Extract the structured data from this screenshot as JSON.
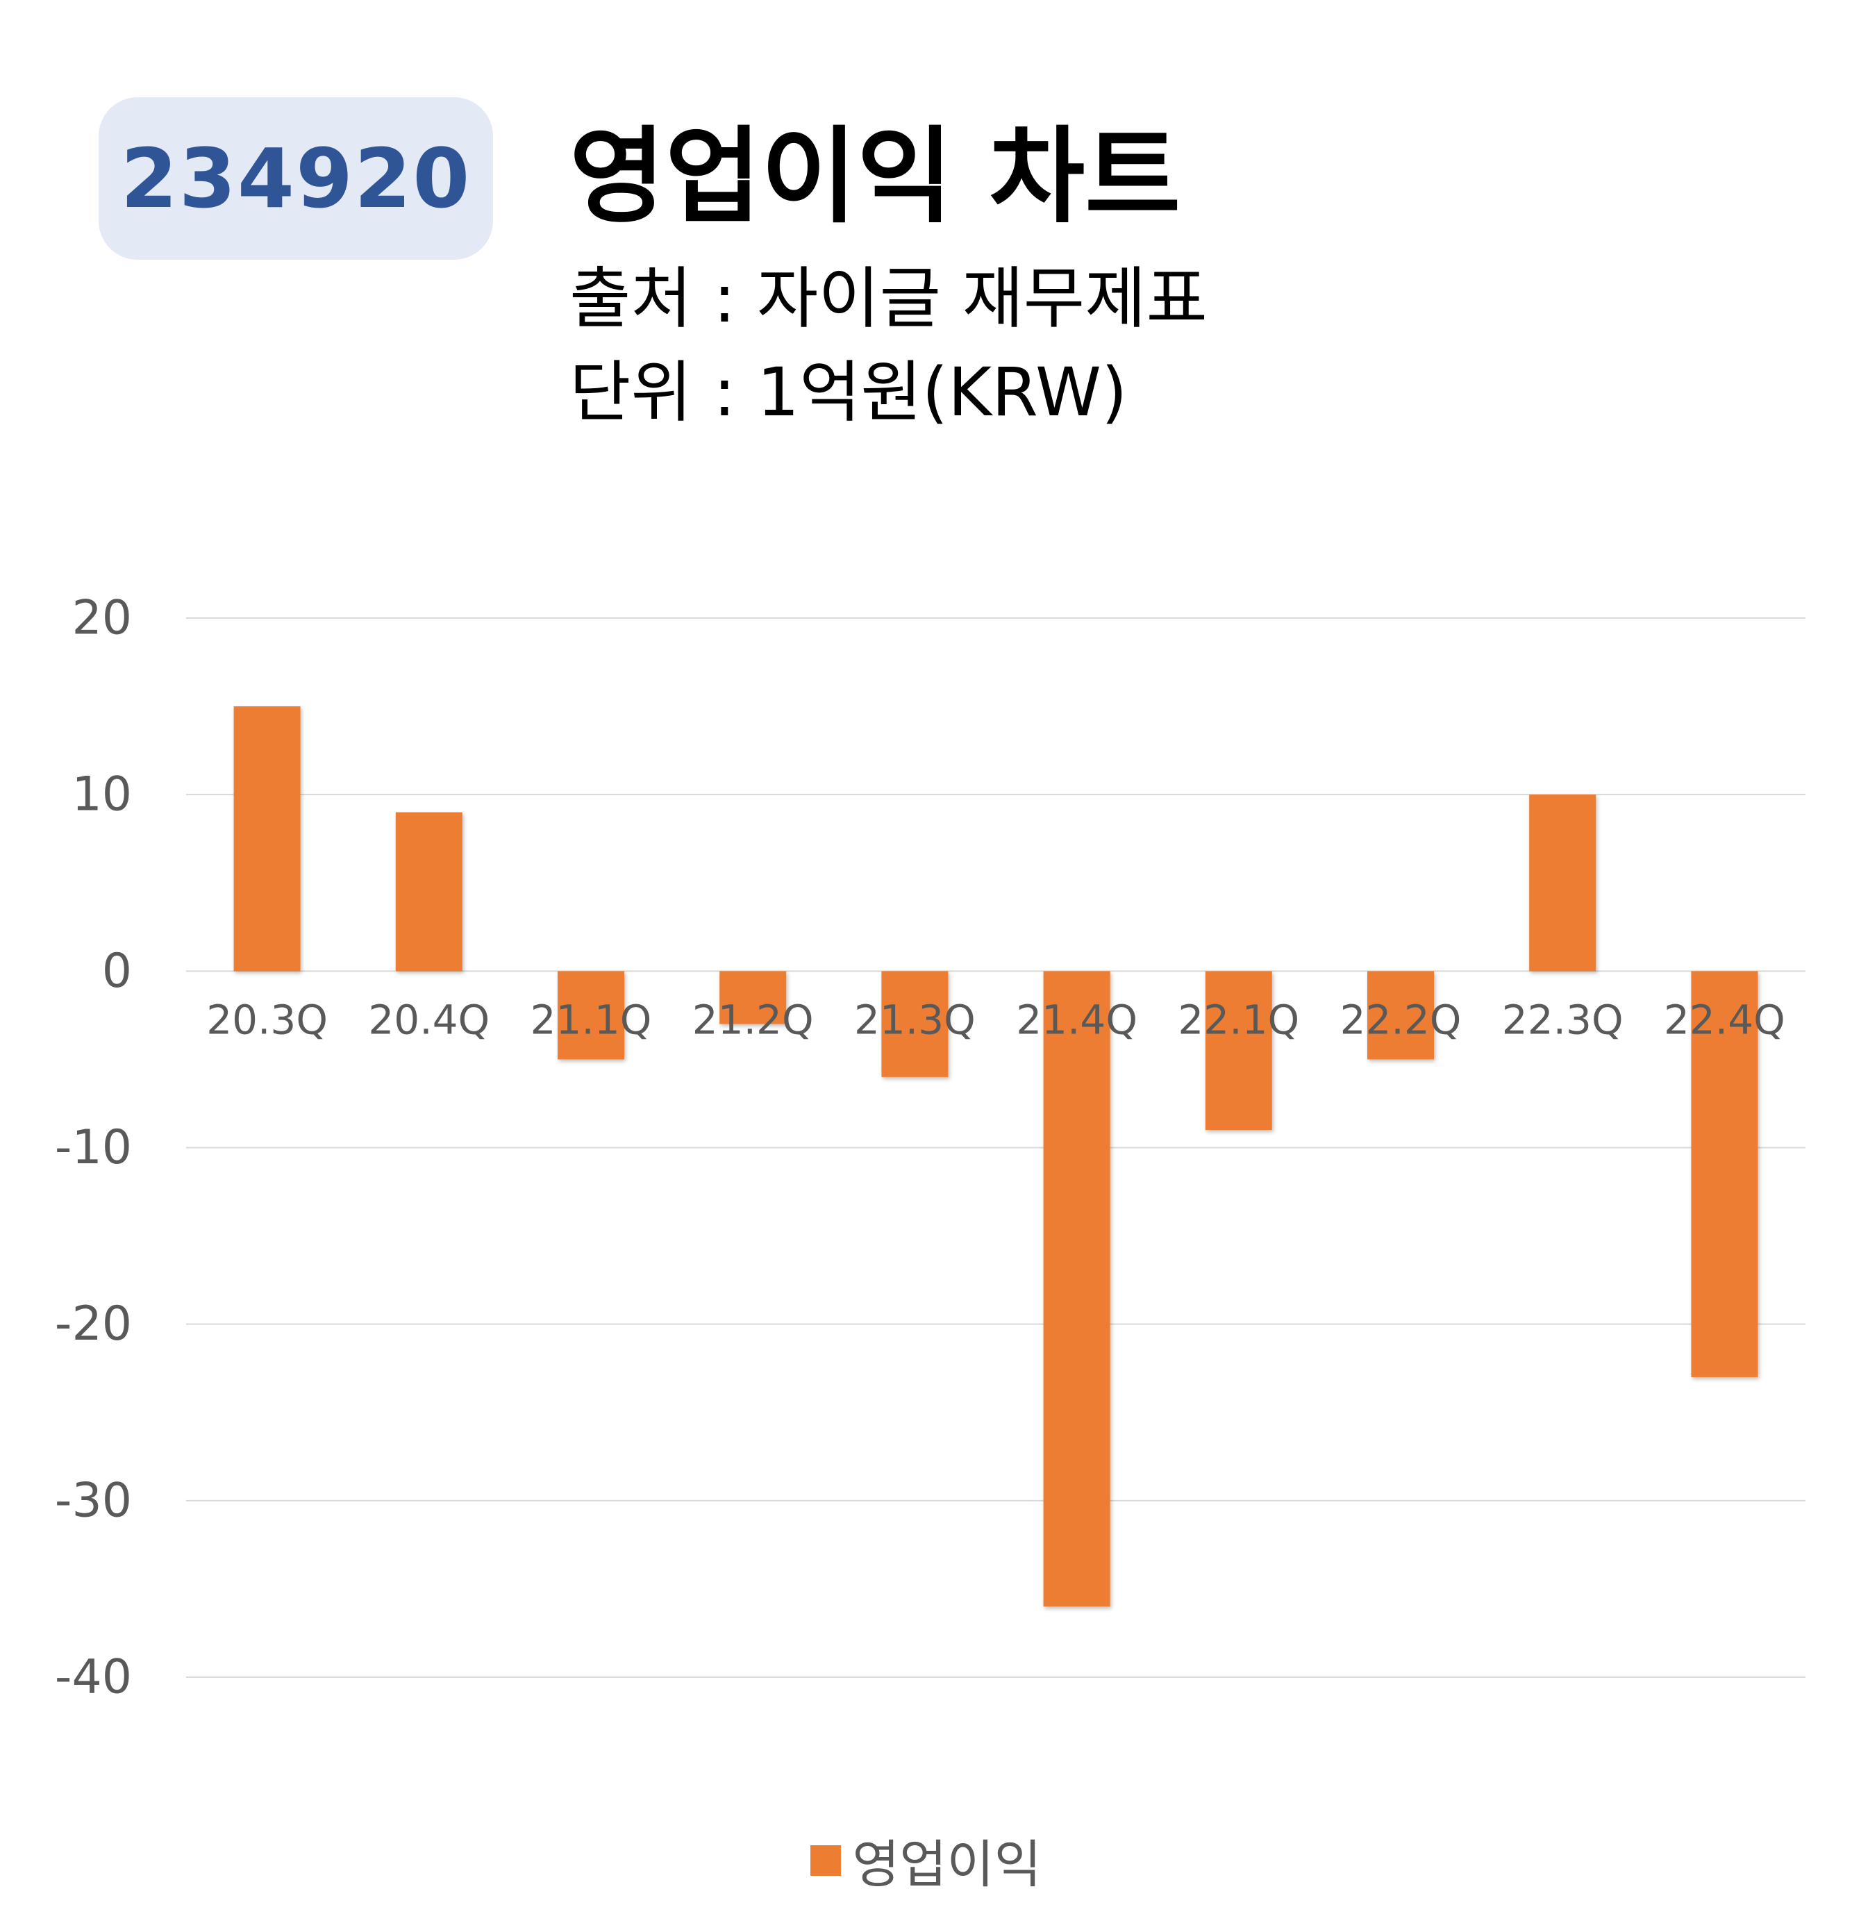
{
  "badge": {
    "code": "234920"
  },
  "header": {
    "title": "영업이익 차트",
    "source": "출처 : 자이글 재무제표",
    "unit": "단위 : 1억원(KRW)"
  },
  "colors": {
    "bar": "#ed7d31",
    "grid": "#d9d9d9",
    "badge_bg": "#e3e9f5",
    "badge_text": "#2f5597"
  },
  "chart_data": {
    "type": "bar",
    "title": "",
    "xlabel": "",
    "ylabel": "",
    "categories": [
      "20.3Q",
      "20.4Q",
      "21.1Q",
      "21.2Q",
      "21.3Q",
      "21.4Q",
      "22.1Q",
      "22.2Q",
      "22.3Q",
      "22.4Q"
    ],
    "series": [
      {
        "name": "영업이익",
        "values": [
          15,
          9,
          -5,
          -3,
          -6,
          -36,
          -9,
          -5,
          10,
          -23
        ]
      }
    ],
    "ylim": [
      -40,
      20
    ],
    "yticks": [
      20,
      10,
      0,
      -10,
      -20,
      -30,
      -40
    ],
    "grid": true,
    "legend": "bottom"
  }
}
